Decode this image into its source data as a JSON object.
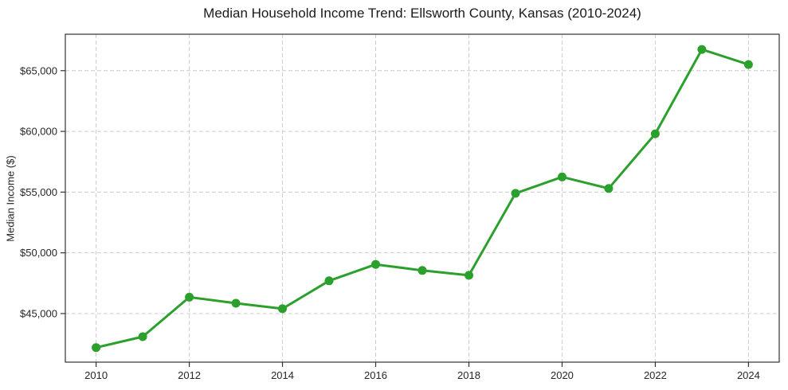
{
  "title": "Median Household Income Trend: Ellsworth County, Kansas (2010-2024)",
  "chart_data": {
    "type": "line",
    "title": "Median Household Income Trend: Ellsworth County, Kansas (2010-2024)",
    "xlabel": "",
    "ylabel": "Median Income ($)",
    "x": [
      2010,
      2011,
      2012,
      2013,
      2014,
      2015,
      2016,
      2017,
      2018,
      2019,
      2020,
      2021,
      2022,
      2023,
      2024
    ],
    "values": [
      42200,
      43100,
      46350,
      45850,
      45400,
      47700,
      49050,
      48550,
      48150,
      54900,
      56250,
      55300,
      59800,
      66750,
      65500
    ],
    "series_name": "Median Household Income",
    "xlim": [
      2009.34,
      2024.66
    ],
    "ylim": [
      41000,
      68000
    ],
    "x_ticks": [
      2010,
      2012,
      2014,
      2016,
      2018,
      2020,
      2022,
      2024
    ],
    "x_tick_labels": [
      "2010",
      "2012",
      "2014",
      "2016",
      "2018",
      "2020",
      "2022",
      "2024"
    ],
    "y_ticks": [
      45000,
      50000,
      55000,
      60000,
      65000
    ],
    "y_tick_labels": [
      "$45,000",
      "$50,000",
      "$55,000",
      "$60,000",
      "$65,000"
    ],
    "grid": true,
    "grid_style": "dashed",
    "legend": "none",
    "marker": "circle"
  },
  "colors": {
    "line": "#2ca02c",
    "marker": "#2ca02c",
    "grid": "#cccccc",
    "spine": "#333333",
    "tick": "#333333",
    "text": "#1a1a1a",
    "background": "#ffffff"
  }
}
